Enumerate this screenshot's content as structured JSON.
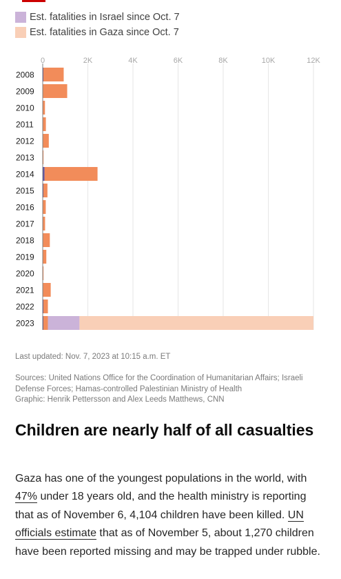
{
  "legend": [
    {
      "label": "Est. fatalities in Israel since Oct. 7",
      "color": "#cbb3d9"
    },
    {
      "label": "Est. fatalities in Gaza since Oct. 7",
      "color": "#f9cfb7"
    }
  ],
  "chart_data": {
    "type": "bar",
    "orientation": "horizontal",
    "stacked": true,
    "title": "",
    "xlabel": "",
    "ylabel": "",
    "xlim": [
      0,
      12000
    ],
    "x_ticks": [
      "0",
      "2K",
      "4K",
      "6K",
      "8K",
      "10K",
      "12K"
    ],
    "x_tick_values": [
      0,
      2000,
      4000,
      6000,
      8000,
      10000,
      12000
    ],
    "grid": true,
    "legend_position": "top-left",
    "categories": [
      "2008",
      "2009",
      "2010",
      "2011",
      "2012",
      "2013",
      "2014",
      "2015",
      "2016",
      "2017",
      "2018",
      "2019",
      "2020",
      "2021",
      "2022",
      "2023"
    ],
    "series": [
      {
        "color": "#5a4fa0",
        "values": [
          30,
          15,
          10,
          10,
          10,
          5,
          80,
          30,
          15,
          15,
          15,
          10,
          5,
          15,
          30,
          30
        ]
      },
      {
        "color": "#f28c5a",
        "values": [
          900,
          1070,
          90,
          130,
          260,
          5,
          2350,
          180,
          120,
          90,
          300,
          150,
          30,
          340,
          200,
          200
        ]
      },
      {
        "name": "Est. fatalities in Israel since Oct. 7",
        "color": "#cbb3d9",
        "values": [
          0,
          0,
          0,
          0,
          0,
          0,
          0,
          0,
          0,
          0,
          0,
          0,
          0,
          0,
          0,
          1400
        ]
      },
      {
        "name": "Est. fatalities in Gaza since Oct. 7",
        "color": "#f9cfb7",
        "values": [
          0,
          0,
          0,
          0,
          0,
          0,
          0,
          0,
          0,
          0,
          0,
          0,
          0,
          0,
          0,
          10370
        ]
      }
    ]
  },
  "footer": {
    "updated": "Last updated: Nov. 7, 2023 at 10:15 a.m. ET",
    "sources": "Sources: United Nations Office for the Coordination of Humanitarian Affairs; Israeli Defense Forces; Hamas-controlled Palestinian Ministry of Health",
    "graphic": "Graphic: Henrik Pettersson and Alex Leeds Matthews, CNN"
  },
  "article": {
    "heading": "Children are nearly half of all casualties",
    "p1": "Gaza has one of the youngest populations in the world, with ",
    "link1": "47%",
    "p2": " under 18 years old, and the health ministry is reporting that as of November 6, 4,104 children have been killed. ",
    "link2": "UN officials estimate",
    "p3": " that as of November 5, about 1,270 children have been reported missing and may be trapped under rubble."
  }
}
